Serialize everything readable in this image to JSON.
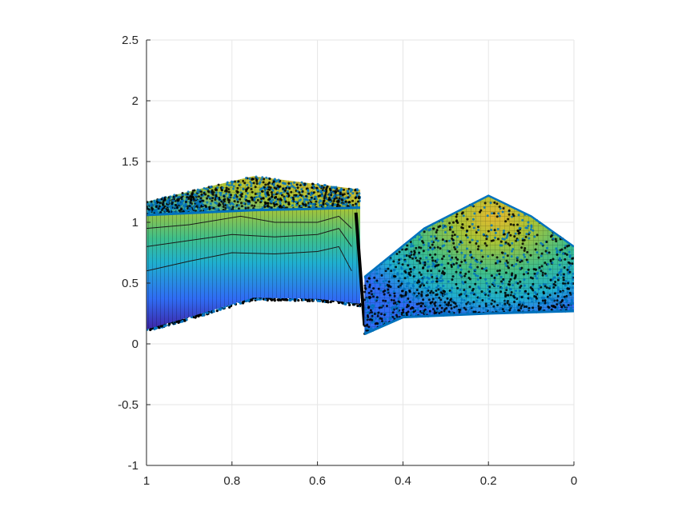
{
  "chart_data": {
    "type": "surface",
    "title": "",
    "xlabel": "",
    "ylabel": "",
    "xlim": [
      1,
      0
    ],
    "ylim": [
      -1,
      2.5
    ],
    "x_reversed": true,
    "grid": true,
    "x_ticks": [
      "1",
      "0.8",
      "0.6",
      "0.4",
      "0.2",
      "0"
    ],
    "y_ticks": [
      "2.5",
      "2",
      "1.5",
      "1",
      "0.5",
      "0",
      "-0.5",
      "-1"
    ],
    "x_tick_values": [
      1,
      0.8,
      0.6,
      0.4,
      0.2,
      0
    ],
    "y_tick_values": [
      2.5,
      2,
      1.5,
      1,
      0.5,
      0,
      -0.5,
      -1
    ],
    "colors": {
      "marker": "#0072bd",
      "marker_dark": "#000000",
      "grid": "#e6e6e6",
      "axis": "#262626",
      "colormap": [
        "#3e26a8",
        "#2f6cf4",
        "#1fb0cf",
        "#3ebf8a",
        "#a8c436",
        "#e4b92f",
        "#f9e21a"
      ]
    },
    "left_region": {
      "x_range": [
        1,
        0.5
      ],
      "lower_edge": [
        [
          1,
          0.12
        ],
        [
          0.9,
          0.22
        ],
        [
          0.75,
          0.38
        ],
        [
          0.6,
          0.37
        ],
        [
          0.5,
          0.33
        ]
      ],
      "top_edge": [
        [
          1,
          1.06
        ],
        [
          0.75,
          1.1
        ],
        [
          0.5,
          1.12
        ]
      ],
      "upper_cloud_peak": [
        [
          1,
          1.17
        ],
        [
          0.75,
          1.38
        ],
        [
          0.5,
          1.27
        ]
      ],
      "contour_levels": [
        [
          [
            1,
            0.6
          ],
          [
            0.9,
            0.68
          ],
          [
            0.8,
            0.75
          ],
          [
            0.7,
            0.74
          ],
          [
            0.6,
            0.76
          ],
          [
            0.55,
            0.8
          ],
          [
            0.52,
            0.6
          ]
        ],
        [
          [
            1,
            0.8
          ],
          [
            0.9,
            0.85
          ],
          [
            0.8,
            0.9
          ],
          [
            0.7,
            0.88
          ],
          [
            0.6,
            0.9
          ],
          [
            0.55,
            0.95
          ],
          [
            0.52,
            0.8
          ]
        ],
        [
          [
            1,
            0.95
          ],
          [
            0.9,
            0.98
          ],
          [
            0.78,
            1.05
          ],
          [
            0.7,
            1.0
          ],
          [
            0.6,
            1.0
          ],
          [
            0.55,
            1.05
          ],
          [
            0.52,
            0.95
          ]
        ]
      ]
    },
    "jump": {
      "x": [
        0.51,
        0.49
      ],
      "y": [
        1.08,
        0.15
      ]
    },
    "right_region": {
      "x_range": [
        0.49,
        0
      ],
      "lower_edge": [
        [
          0.49,
          0.08
        ],
        [
          0.4,
          0.22
        ],
        [
          0.2,
          0.25
        ],
        [
          0,
          0.27
        ]
      ],
      "upper_edge": [
        [
          0.49,
          0.55
        ],
        [
          0.35,
          0.95
        ],
        [
          0.2,
          1.22
        ],
        [
          0.1,
          1.05
        ],
        [
          0,
          0.8
        ]
      ],
      "right_side": [
        [
          0,
          0.27
        ],
        [
          0,
          0.8
        ]
      ]
    }
  }
}
